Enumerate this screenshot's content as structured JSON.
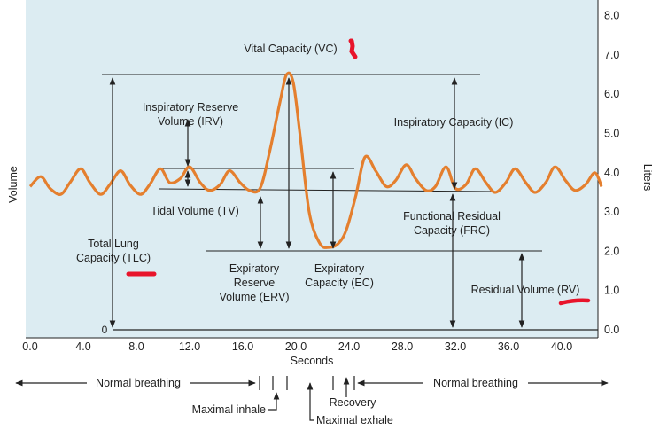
{
  "chart_data": {
    "type": "line",
    "title": "",
    "xlabel": "Seconds",
    "ylabel_left": "Volume",
    "ylabel_right": "Liters",
    "xlim": [
      0,
      43
    ],
    "ylim": [
      0,
      8
    ],
    "x_ticks": [
      "0.0",
      "4.0",
      "8.0",
      "12.0",
      "16.0",
      "20.0",
      "24.0",
      "28.0",
      "32.0",
      "36.0",
      "40.0"
    ],
    "y_ticks": [
      "0.0",
      "1.0",
      "2.0",
      "3.0",
      "4.0",
      "5.0",
      "6.0",
      "7.0",
      "8.0"
    ],
    "left_zero_label": "0",
    "series": [
      {
        "x": [
          0,
          0.8,
          1.5,
          2.3,
          3.0,
          3.8,
          4.5,
          5.3,
          6.0,
          6.8,
          7.5,
          8.3,
          9.0,
          9.8,
          10.5,
          11.3,
          12.0,
          12.8,
          13.5,
          14.3,
          15.0,
          15.8,
          16.5,
          17.3,
          18.0,
          18.8,
          19.3,
          19.8,
          20.3,
          21.0,
          21.8,
          22.5,
          23.2,
          23.8,
          24.5,
          25.2,
          26.0,
          26.8,
          27.5,
          28.3,
          29.0,
          29.8,
          30.5,
          31.3,
          32.0,
          32.8,
          33.5,
          34.3,
          35.0,
          35.8,
          36.5,
          37.3,
          38.0,
          38.8,
          39.5,
          40.3,
          41.0,
          41.8,
          42.5,
          43.0
        ],
        "y": [
          3.65,
          3.9,
          3.6,
          3.45,
          3.75,
          4.1,
          3.75,
          3.45,
          3.7,
          4.05,
          3.7,
          3.45,
          3.7,
          4.1,
          3.75,
          3.85,
          4.15,
          3.75,
          3.55,
          3.7,
          4.05,
          3.75,
          3.55,
          3.6,
          4.5,
          5.8,
          6.5,
          6.3,
          5.0,
          3.0,
          2.2,
          2.1,
          2.2,
          2.55,
          3.4,
          4.4,
          4.05,
          3.65,
          3.8,
          4.2,
          3.85,
          3.55,
          3.65,
          4.15,
          3.6,
          3.7,
          4.1,
          3.75,
          3.5,
          3.75,
          4.1,
          3.75,
          3.5,
          3.75,
          4.15,
          3.8,
          3.55,
          3.7,
          4.0,
          3.65
        ]
      }
    ],
    "annotations": {
      "vc": "Vital Capacity (VC)",
      "irv": [
        "Inspiratory Reserve",
        "Volume (IRV)"
      ],
      "ic": "Inspiratory Capacity (IC)",
      "tv": "Tidal Volume (TV)",
      "frc": [
        "Functional Residual",
        "Capacity (FRC)"
      ],
      "tlc": [
        "Total Lung",
        "Capacity (TLC)"
      ],
      "erv": [
        "Expiratory",
        "Reserve",
        "Volume (ERV)"
      ],
      "ec": [
        "Expiratory",
        "Capacity (EC)"
      ],
      "rv": "Residual Volume (RV)"
    },
    "phases": {
      "normal_left": "Normal breathing",
      "normal_right": "Normal breathing",
      "inhale": "Maximal inhale",
      "exhale": "Maximal exhale",
      "recovery": "Recovery"
    },
    "grid": false,
    "colors": {
      "plot_bg": "#dcecf2",
      "curve": "#e47f2e",
      "lines": "#222222",
      "highlight": "#e8142b"
    }
  }
}
